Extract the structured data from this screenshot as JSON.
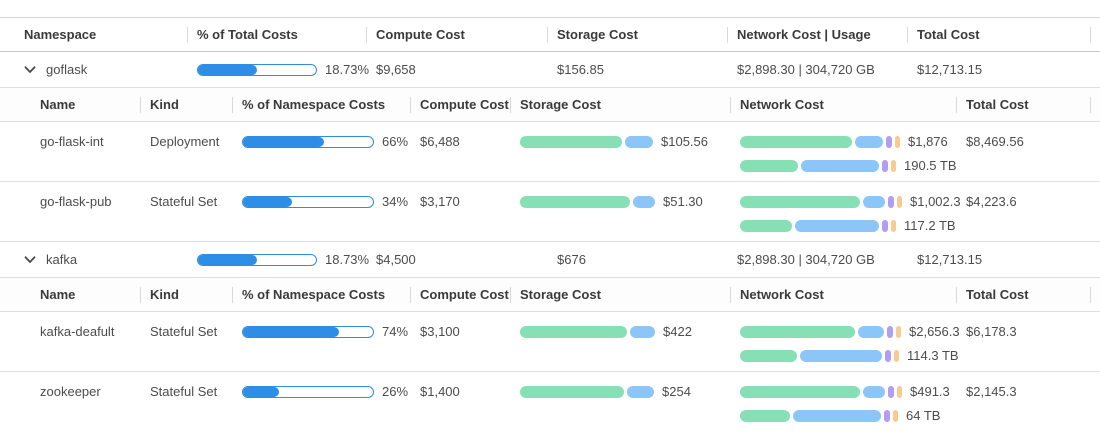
{
  "palette": {
    "blue": "#2E8DE5",
    "green": "#87DFB5",
    "lightblue": "#8CC6F8",
    "purple": "#B29DF3",
    "orange": "#F7CB92"
  },
  "outer_header": {
    "namespace": "Namespace",
    "pct": "% of Total Costs",
    "compute": "Compute Cost",
    "storage": "Storage Cost",
    "network": "Network Cost | Usage",
    "total": "Total Cost"
  },
  "inner_header": {
    "name": "Name",
    "kind": "Kind",
    "pct": "% of Namespace Costs",
    "compute": "Compute Cost",
    "storage": "Storage Cost",
    "network": "Network Cost",
    "total": "Total Cost"
  },
  "namespaces": [
    {
      "name": "goflask",
      "pct_label": "18.73%",
      "pct_fill": 50,
      "compute": "$9,658",
      "storage": "$156.85",
      "network": "$2,898.30 | 304,720 GB",
      "total": "$12,713.15",
      "workloads": [
        {
          "name": "go-flask-int",
          "kind": "Deployment",
          "pct_label": "66%",
          "pct_fill": 62,
          "compute": "$6,488",
          "storage_bar": [
            [
              "green",
              102
            ],
            [
              "lightblue",
              28
            ]
          ],
          "storage_label": "$105.56",
          "netcost_bar": [
            [
              "green",
              112
            ],
            [
              "lightblue",
              28
            ],
            [
              "purple",
              6
            ],
            [
              "orange",
              5
            ]
          ],
          "netcost_label": "$1,876",
          "netusage_bar": [
            [
              "green",
              58
            ],
            [
              "lightblue",
              78
            ],
            [
              "purple",
              6
            ],
            [
              "orange",
              5
            ]
          ],
          "netusage_label": "190.5 TB",
          "total": "$8,469.56"
        },
        {
          "name": "go-flask-pub",
          "kind": "Stateful Set",
          "pct_label": "34%",
          "pct_fill": 38,
          "compute": "$3,170",
          "storage_bar": [
            [
              "green",
              110
            ],
            [
              "lightblue",
              22
            ]
          ],
          "storage_label": "$51.30",
          "netcost_bar": [
            [
              "green",
              120
            ],
            [
              "lightblue",
              22
            ],
            [
              "purple",
              6
            ],
            [
              "orange",
              5
            ]
          ],
          "netcost_label": "$1,002.3",
          "netusage_bar": [
            [
              "green",
              52
            ],
            [
              "lightblue",
              84
            ],
            [
              "purple",
              6
            ],
            [
              "orange",
              5
            ]
          ],
          "netusage_label": "117.2 TB",
          "total": "$4,223.6"
        }
      ]
    },
    {
      "name": "kafka",
      "pct_label": "18.73%",
      "pct_fill": 50,
      "compute": "$4,500",
      "storage": "$676",
      "network": "$2,898.30 | 304,720 GB",
      "total": "$12,713.15",
      "workloads": [
        {
          "name": "kafka-deafult",
          "kind": "Stateful Set",
          "pct_label": "74%",
          "pct_fill": 74,
          "compute": "$3,100",
          "storage_bar": [
            [
              "green",
              107
            ],
            [
              "lightblue",
              25
            ]
          ],
          "storage_label": "$422",
          "netcost_bar": [
            [
              "green",
              115
            ],
            [
              "lightblue",
              26
            ],
            [
              "purple",
              6
            ],
            [
              "orange",
              5
            ]
          ],
          "netcost_label": "$2,656.3",
          "netusage_bar": [
            [
              "green",
              57
            ],
            [
              "lightblue",
              82
            ],
            [
              "purple",
              6
            ],
            [
              "orange",
              5
            ]
          ],
          "netusage_label": "114.3 TB",
          "total": "$6,178.3"
        },
        {
          "name": "zookeeper",
          "kind": "Stateful Set",
          "pct_label": "26%",
          "pct_fill": 28,
          "compute": "$1,400",
          "storage_bar": [
            [
              "green",
              104
            ],
            [
              "lightblue",
              27
            ]
          ],
          "storage_label": "$254",
          "netcost_bar": [
            [
              "green",
              120
            ],
            [
              "lightblue",
              22
            ],
            [
              "purple",
              6
            ],
            [
              "orange",
              5
            ]
          ],
          "netcost_label": "$491.3",
          "netusage_bar": [
            [
              "green",
              50
            ],
            [
              "lightblue",
              88
            ],
            [
              "purple",
              6
            ],
            [
              "orange",
              5
            ]
          ],
          "netusage_label": "64 TB",
          "total": "$2,145.3"
        }
      ]
    }
  ]
}
